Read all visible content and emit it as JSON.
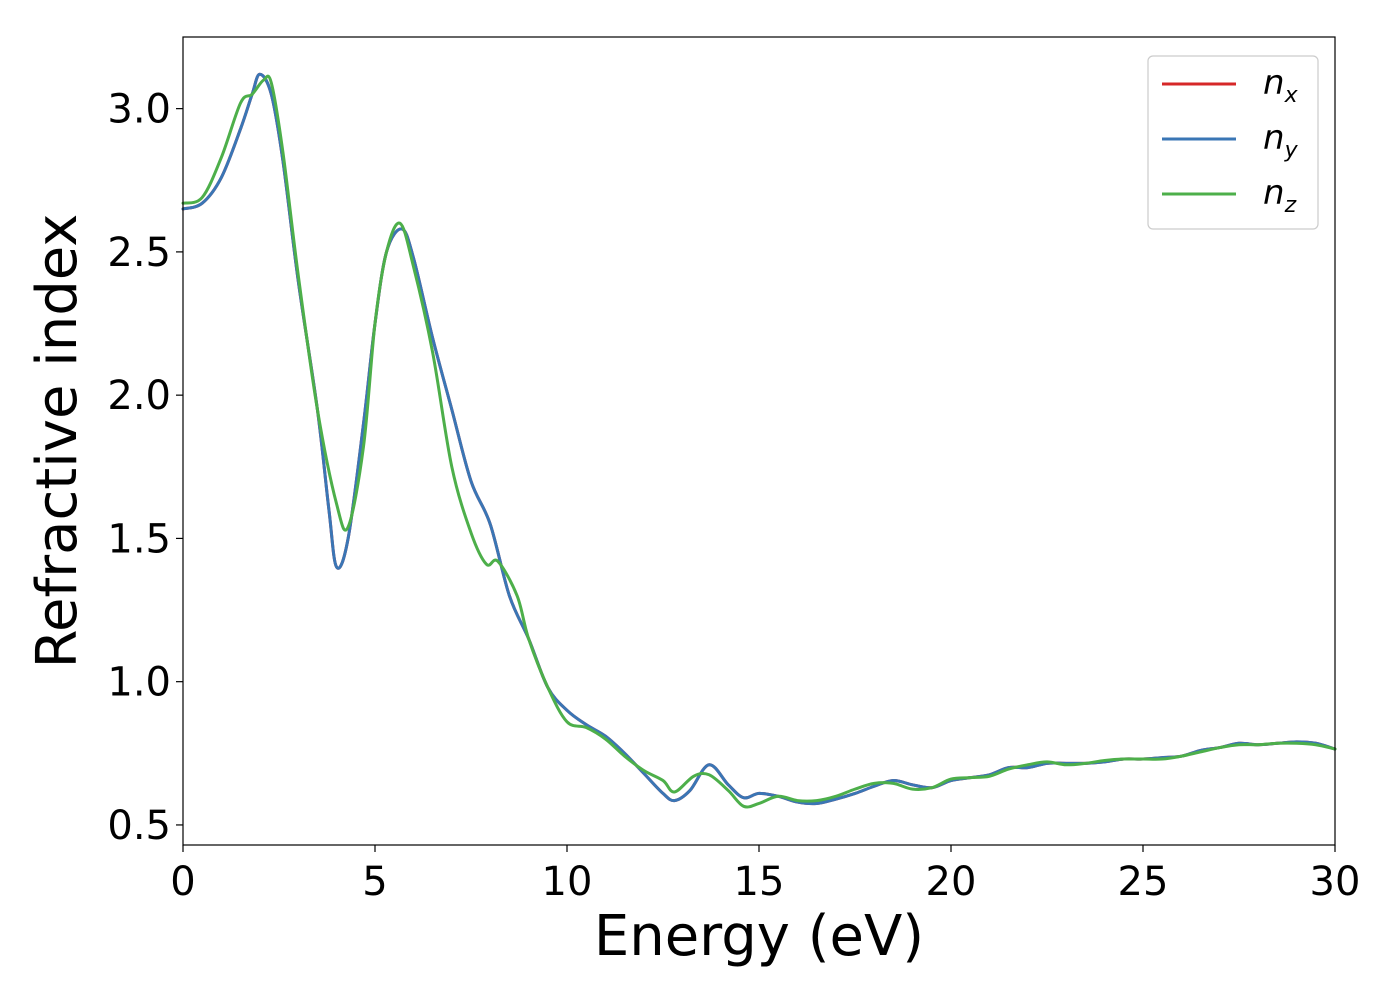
{
  "chart_data": {
    "type": "line",
    "xlabel": "Energy (eV)",
    "ylabel": "Refractive index",
    "xlim": [
      0,
      30
    ],
    "ylim": [
      0.43,
      3.25
    ],
    "xticks": [
      0,
      5,
      10,
      15,
      20,
      25,
      30
    ],
    "xtick_labels": [
      "0",
      "5",
      "10",
      "15",
      "20",
      "25",
      "30"
    ],
    "yticks": [
      0.5,
      1.0,
      1.5,
      2.0,
      2.5,
      3.0
    ],
    "ytick_labels": [
      "0.5",
      "1.0",
      "1.5",
      "2.0",
      "2.5",
      "3.0"
    ],
    "grid": false,
    "legend_position": "top-right",
    "series": [
      {
        "name": "n",
        "subscript": "x",
        "color": "#d62728",
        "points": [
          [
            0,
            2.65
          ],
          [
            0.5,
            2.67
          ],
          [
            1.0,
            2.76
          ],
          [
            1.5,
            2.93
          ],
          [
            1.8,
            3.05
          ],
          [
            2.0,
            3.12
          ],
          [
            2.3,
            3.05
          ],
          [
            2.6,
            2.82
          ],
          [
            3.0,
            2.4
          ],
          [
            3.5,
            1.95
          ],
          [
            3.8,
            1.6
          ],
          [
            4.0,
            1.4
          ],
          [
            4.3,
            1.5
          ],
          [
            4.7,
            1.9
          ],
          [
            5.0,
            2.25
          ],
          [
            5.3,
            2.5
          ],
          [
            5.7,
            2.58
          ],
          [
            6.0,
            2.48
          ],
          [
            6.5,
            2.2
          ],
          [
            7.0,
            1.95
          ],
          [
            7.5,
            1.7
          ],
          [
            8.0,
            1.55
          ],
          [
            8.5,
            1.3
          ],
          [
            9.0,
            1.15
          ],
          [
            9.5,
            0.98
          ],
          [
            10.0,
            0.9
          ],
          [
            10.5,
            0.85
          ],
          [
            11.0,
            0.81
          ],
          [
            11.5,
            0.75
          ],
          [
            12.0,
            0.68
          ],
          [
            12.5,
            0.61
          ],
          [
            12.8,
            0.585
          ],
          [
            13.2,
            0.62
          ],
          [
            13.7,
            0.71
          ],
          [
            14.2,
            0.64
          ],
          [
            14.6,
            0.595
          ],
          [
            15.0,
            0.61
          ],
          [
            15.5,
            0.6
          ],
          [
            16.0,
            0.58
          ],
          [
            16.5,
            0.575
          ],
          [
            17.0,
            0.59
          ],
          [
            17.5,
            0.61
          ],
          [
            18.0,
            0.635
          ],
          [
            18.5,
            0.655
          ],
          [
            19.0,
            0.64
          ],
          [
            19.5,
            0.63
          ],
          [
            20.0,
            0.655
          ],
          [
            20.5,
            0.665
          ],
          [
            21.0,
            0.675
          ],
          [
            21.5,
            0.7
          ],
          [
            22.0,
            0.7
          ],
          [
            22.5,
            0.715
          ],
          [
            23.0,
            0.715
          ],
          [
            23.5,
            0.715
          ],
          [
            24.0,
            0.72
          ],
          [
            24.5,
            0.73
          ],
          [
            25.0,
            0.73
          ],
          [
            25.5,
            0.735
          ],
          [
            26.0,
            0.74
          ],
          [
            26.5,
            0.76
          ],
          [
            27.0,
            0.77
          ],
          [
            27.5,
            0.785
          ],
          [
            28.0,
            0.78
          ],
          [
            28.5,
            0.785
          ],
          [
            29.0,
            0.79
          ],
          [
            29.5,
            0.785
          ],
          [
            30.0,
            0.765
          ]
        ]
      },
      {
        "name": "n",
        "subscript": "y",
        "color": "#3a76b5",
        "points": [
          [
            0,
            2.65
          ],
          [
            0.5,
            2.67
          ],
          [
            1.0,
            2.76
          ],
          [
            1.5,
            2.93
          ],
          [
            1.8,
            3.05
          ],
          [
            2.0,
            3.12
          ],
          [
            2.3,
            3.05
          ],
          [
            2.6,
            2.82
          ],
          [
            3.0,
            2.4
          ],
          [
            3.5,
            1.95
          ],
          [
            3.8,
            1.6
          ],
          [
            4.0,
            1.4
          ],
          [
            4.3,
            1.5
          ],
          [
            4.7,
            1.9
          ],
          [
            5.0,
            2.25
          ],
          [
            5.3,
            2.5
          ],
          [
            5.7,
            2.58
          ],
          [
            6.0,
            2.48
          ],
          [
            6.5,
            2.2
          ],
          [
            7.0,
            1.95
          ],
          [
            7.5,
            1.7
          ],
          [
            8.0,
            1.55
          ],
          [
            8.5,
            1.3
          ],
          [
            9.0,
            1.15
          ],
          [
            9.5,
            0.98
          ],
          [
            10.0,
            0.9
          ],
          [
            10.5,
            0.85
          ],
          [
            11.0,
            0.81
          ],
          [
            11.5,
            0.75
          ],
          [
            12.0,
            0.68
          ],
          [
            12.5,
            0.61
          ],
          [
            12.8,
            0.585
          ],
          [
            13.2,
            0.62
          ],
          [
            13.7,
            0.71
          ],
          [
            14.2,
            0.64
          ],
          [
            14.6,
            0.595
          ],
          [
            15.0,
            0.61
          ],
          [
            15.5,
            0.6
          ],
          [
            16.0,
            0.58
          ],
          [
            16.5,
            0.575
          ],
          [
            17.0,
            0.59
          ],
          [
            17.5,
            0.61
          ],
          [
            18.0,
            0.635
          ],
          [
            18.5,
            0.655
          ],
          [
            19.0,
            0.64
          ],
          [
            19.5,
            0.63
          ],
          [
            20.0,
            0.655
          ],
          [
            20.5,
            0.665
          ],
          [
            21.0,
            0.675
          ],
          [
            21.5,
            0.7
          ],
          [
            22.0,
            0.7
          ],
          [
            22.5,
            0.715
          ],
          [
            23.0,
            0.715
          ],
          [
            23.5,
            0.715
          ],
          [
            24.0,
            0.72
          ],
          [
            24.5,
            0.73
          ],
          [
            25.0,
            0.73
          ],
          [
            25.5,
            0.735
          ],
          [
            26.0,
            0.74
          ],
          [
            26.5,
            0.76
          ],
          [
            27.0,
            0.77
          ],
          [
            27.5,
            0.785
          ],
          [
            28.0,
            0.78
          ],
          [
            28.5,
            0.785
          ],
          [
            29.0,
            0.79
          ],
          [
            29.5,
            0.785
          ],
          [
            30.0,
            0.765
          ]
        ]
      },
      {
        "name": "n",
        "subscript": "z",
        "color": "#4daf4a",
        "points": [
          [
            0,
            2.67
          ],
          [
            0.5,
            2.69
          ],
          [
            1.0,
            2.83
          ],
          [
            1.5,
            3.02
          ],
          [
            1.8,
            3.05
          ],
          [
            2.1,
            3.1
          ],
          [
            2.3,
            3.09
          ],
          [
            2.6,
            2.85
          ],
          [
            3.0,
            2.42
          ],
          [
            3.5,
            1.95
          ],
          [
            4.0,
            1.62
          ],
          [
            4.3,
            1.54
          ],
          [
            4.7,
            1.82
          ],
          [
            5.0,
            2.25
          ],
          [
            5.3,
            2.5
          ],
          [
            5.65,
            2.6
          ],
          [
            6.0,
            2.45
          ],
          [
            6.5,
            2.15
          ],
          [
            7.0,
            1.75
          ],
          [
            7.5,
            1.52
          ],
          [
            7.9,
            1.41
          ],
          [
            8.2,
            1.42
          ],
          [
            8.7,
            1.3
          ],
          [
            9.0,
            1.15
          ],
          [
            9.5,
            0.98
          ],
          [
            10.0,
            0.86
          ],
          [
            10.5,
            0.84
          ],
          [
            11.0,
            0.8
          ],
          [
            11.5,
            0.74
          ],
          [
            12.0,
            0.69
          ],
          [
            12.5,
            0.655
          ],
          [
            12.8,
            0.615
          ],
          [
            13.3,
            0.67
          ],
          [
            13.7,
            0.675
          ],
          [
            14.2,
            0.62
          ],
          [
            14.6,
            0.565
          ],
          [
            15.0,
            0.575
          ],
          [
            15.5,
            0.6
          ],
          [
            16.0,
            0.585
          ],
          [
            16.5,
            0.585
          ],
          [
            17.0,
            0.6
          ],
          [
            17.5,
            0.625
          ],
          [
            18.0,
            0.645
          ],
          [
            18.5,
            0.645
          ],
          [
            19.0,
            0.625
          ],
          [
            19.5,
            0.63
          ],
          [
            20.0,
            0.66
          ],
          [
            20.5,
            0.665
          ],
          [
            21.0,
            0.67
          ],
          [
            21.5,
            0.695
          ],
          [
            22.0,
            0.71
          ],
          [
            22.5,
            0.72
          ],
          [
            23.0,
            0.71
          ],
          [
            23.5,
            0.715
          ],
          [
            24.0,
            0.725
          ],
          [
            24.5,
            0.73
          ],
          [
            25.0,
            0.73
          ],
          [
            25.5,
            0.73
          ],
          [
            26.0,
            0.74
          ],
          [
            26.5,
            0.755
          ],
          [
            27.0,
            0.77
          ],
          [
            27.5,
            0.78
          ],
          [
            28.0,
            0.78
          ],
          [
            28.5,
            0.785
          ],
          [
            29.0,
            0.785
          ],
          [
            29.5,
            0.78
          ],
          [
            30.0,
            0.765
          ]
        ]
      }
    ]
  }
}
